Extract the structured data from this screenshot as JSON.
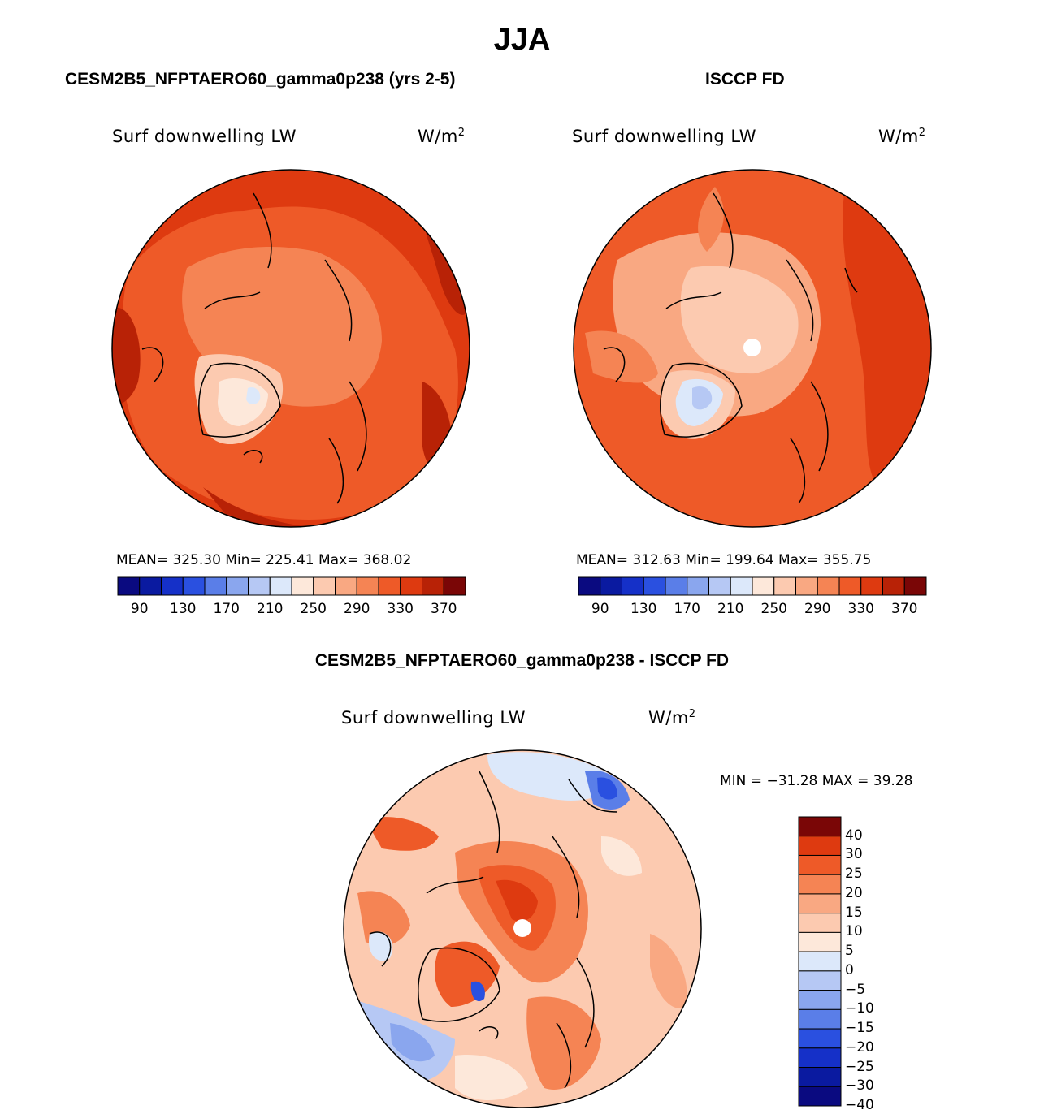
{
  "title": "JJA",
  "panels": [
    {
      "id": "model",
      "header": "CESM2B5_NFPTAERO60_gamma0p238 (yrs 2-5)",
      "variable": "Surf downwelling LW",
      "units_base": "W/m",
      "units_exp": "2",
      "stats": "MEAN= 325.30   Min= 225.41   Max= 368.02"
    },
    {
      "id": "obs",
      "header": "ISCCP FD",
      "variable": "Surf downwelling LW",
      "units_base": "W/m",
      "units_exp": "2",
      "stats": "MEAN= 312.63   Min= 199.64   Max= 355.75"
    }
  ],
  "diff_panel": {
    "header": "CESM2B5_NFPTAERO60_gamma0p238 - ISCCP FD",
    "variable": "Surf downwelling LW",
    "units_base": "W/m",
    "units_exp": "2",
    "minmax": "MIN = −31.28 MAX =  39.28"
  },
  "chart_data": [
    {
      "type": "heatmap",
      "title": "Surf downwelling LW",
      "panel": "CESM2B5_NFPTAERO60_gamma0p238 (yrs 2-5)",
      "units": "W/m2",
      "mean": 325.3,
      "min": 225.41,
      "max": 368.02,
      "colorbar_ticks": [
        "90",
        "130",
        "170",
        "210",
        "250",
        "290",
        "330",
        "370"
      ]
    },
    {
      "type": "heatmap",
      "title": "Surf downwelling LW",
      "panel": "ISCCP FD",
      "units": "W/m2",
      "mean": 312.63,
      "min": 199.64,
      "max": 355.75,
      "colorbar_ticks": [
        "90",
        "130",
        "170",
        "210",
        "250",
        "290",
        "330",
        "370"
      ]
    },
    {
      "type": "heatmap",
      "title": "Surf downwelling LW",
      "panel": "CESM2B5_NFPTAERO60_gamma0p238 - ISCCP FD",
      "units": "W/m2",
      "min": -31.28,
      "max": 39.28,
      "colorbar_ticks": [
        "40",
        "30",
        "25",
        "20",
        "15",
        "10",
        "5",
        "0",
        "−5",
        "−10",
        "−15",
        "−20",
        "−25",
        "−30",
        "−40"
      ]
    }
  ],
  "colors": {
    "abs_scale": [
      "#0a0a80",
      "#0a1aa0",
      "#1530c8",
      "#2a50e0",
      "#5a7ee8",
      "#8aa6ee",
      "#b6c8f4",
      "#dce8fa",
      "#fde8da",
      "#fccab0",
      "#f9a882",
      "#f58454",
      "#ee5a28",
      "#de3a10",
      "#b82206",
      "#7a0606"
    ],
    "diff_scale": [
      "#0a0a80",
      "#0a1aa0",
      "#1530c8",
      "#2a50e0",
      "#5a7ee8",
      "#8aa6ee",
      "#b6c8f4",
      "#dce8fa",
      "#fde8da",
      "#fccab0",
      "#f9a882",
      "#f58454",
      "#ee5a28",
      "#de3a10",
      "#7a0606"
    ]
  }
}
